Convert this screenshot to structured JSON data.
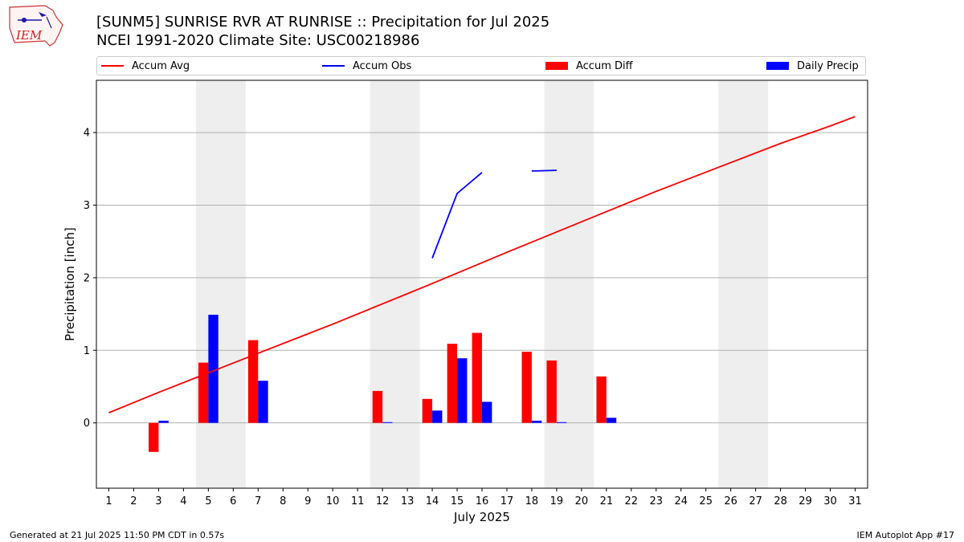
{
  "header": {
    "logo_text": "IEM",
    "title_line1": "[SUNM5] SUNRISE RVR AT RUNRISE :: Precipitation for Jul 2025",
    "title_line2": "NCEI 1991-2020 Climate Site: USC00218986"
  },
  "legend": [
    {
      "label": "Accum Avg",
      "kind": "line",
      "color": "#ff0000"
    },
    {
      "label": "Accum Obs",
      "kind": "line",
      "color": "#0000ff"
    },
    {
      "label": "Accum Diff",
      "kind": "rect",
      "color": "#ff0000"
    },
    {
      "label": "Daily Precip",
      "kind": "rect",
      "color": "#0000ff"
    }
  ],
  "chart_data": {
    "type": "bar",
    "xlabel": "July 2025",
    "ylabel": "Precipitation [inch]",
    "xlim": [
      0.5,
      31.5
    ],
    "ylim": [
      -0.9,
      4.72
    ],
    "yticks": [
      0,
      1,
      2,
      3,
      4
    ],
    "x": [
      1,
      2,
      3,
      4,
      5,
      6,
      7,
      8,
      9,
      10,
      11,
      12,
      13,
      14,
      15,
      16,
      17,
      18,
      19,
      20,
      21,
      22,
      23,
      24,
      25,
      26,
      27,
      28,
      29,
      30,
      31
    ],
    "weekend_bands": [
      [
        4.5,
        6.5
      ],
      [
        11.5,
        13.5
      ],
      [
        18.5,
        20.5
      ],
      [
        25.5,
        27.5
      ]
    ],
    "accum_avg": {
      "name": "Accum Avg",
      "color": "#ff0000",
      "points": [
        [
          1,
          0.14
        ],
        [
          3,
          0.42
        ],
        [
          7,
          0.96
        ],
        [
          10,
          1.36
        ],
        [
          14,
          1.92
        ],
        [
          17,
          2.35
        ],
        [
          21,
          2.91
        ],
        [
          23,
          3.19
        ],
        [
          28,
          3.85
        ],
        [
          30,
          4.09
        ],
        [
          31,
          4.22
        ]
      ]
    },
    "accum_obs": {
      "name": "Accum Obs",
      "color": "#0000ff",
      "segments": [
        [
          [
            14,
            2.27
          ],
          [
            15,
            3.16
          ],
          [
            16,
            3.45
          ]
        ],
        [
          [
            18,
            3.47
          ],
          [
            19,
            3.48
          ]
        ]
      ]
    },
    "accum_diff": {
      "name": "Accum Diff",
      "color": "#ff0000",
      "values": [
        [
          3,
          -0.4
        ],
        [
          5,
          0.83
        ],
        [
          7,
          1.14
        ],
        [
          12,
          0.44
        ],
        [
          14,
          0.33
        ],
        [
          15,
          1.09
        ],
        [
          16,
          1.24
        ],
        [
          18,
          0.98
        ],
        [
          19,
          0.86
        ],
        [
          21,
          0.64
        ]
      ]
    },
    "daily_precip": {
      "name": "Daily Precip",
      "color": "#0000ff",
      "values": [
        [
          3,
          0.03
        ],
        [
          5,
          1.49
        ],
        [
          7,
          0.58
        ],
        [
          12,
          0.01
        ],
        [
          14,
          0.17
        ],
        [
          15,
          0.89
        ],
        [
          16,
          0.29
        ],
        [
          18,
          0.03
        ],
        [
          19,
          0.01
        ],
        [
          21,
          0.07
        ]
      ]
    }
  },
  "footer": {
    "generated": "Generated at 21 Jul 2025 11:50 PM CDT in 0.57s",
    "app": "IEM Autoplot App #17"
  }
}
